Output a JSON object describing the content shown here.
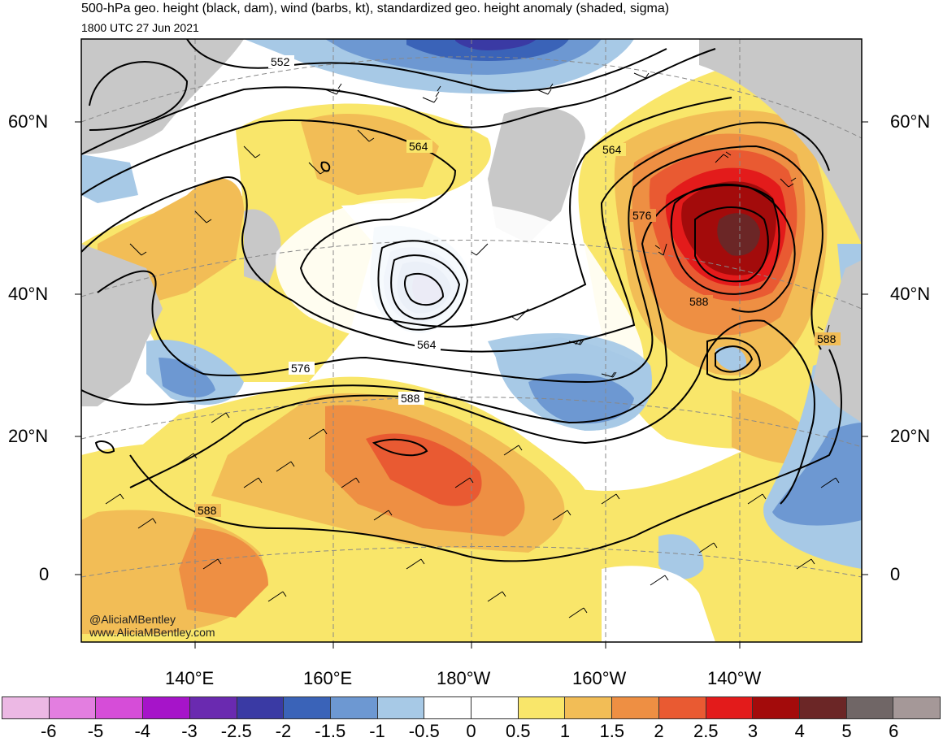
{
  "title_line1": "500-hPa geo. height (black, dam), wind (barbs, kt), standardized geo. height anomaly (shaded, sigma)",
  "title_line2": "1800 UTC 27 Jun 2021",
  "credit_line1": "@AliciaMBentley",
  "credit_line2": "www.AliciaMBentley.com",
  "latitude_labels": [
    "60°N",
    "40°N",
    "20°N",
    "0"
  ],
  "longitude_labels": [
    "140°E",
    "160°E",
    "180°W",
    "160°W",
    "140°W"
  ],
  "contour_labels": [
    "552",
    "564",
    "564",
    "576",
    "576",
    "588",
    "588",
    "588",
    "588",
    "564"
  ],
  "colorbar": {
    "ticks": [
      "-6",
      "-5",
      "-4",
      "-3",
      "-2.5",
      "-2",
      "-1.5",
      "-1",
      "-0.5",
      "0",
      "0.5",
      "1",
      "1.5",
      "2",
      "2.5",
      "3",
      "4",
      "5",
      "6"
    ],
    "colors": [
      "#ecb8e4",
      "#e37ee0",
      "#d64dd8",
      "#a614c9",
      "#6a2ab0",
      "#3a3aa4",
      "#3a63b8",
      "#6d98d2",
      "#a7c9e6",
      "#ffffff",
      "#ffffff",
      "#f9e66a",
      "#f2bd56",
      "#ee8f43",
      "#e95a32",
      "#e31b1b",
      "#a30b0b",
      "#6b2626",
      "#706666",
      "#a59898"
    ]
  },
  "colors": {
    "land": "#c8c8c8",
    "ocean_neutral": "#ffffff",
    "contour": "#000000",
    "gridline": "#888888"
  }
}
